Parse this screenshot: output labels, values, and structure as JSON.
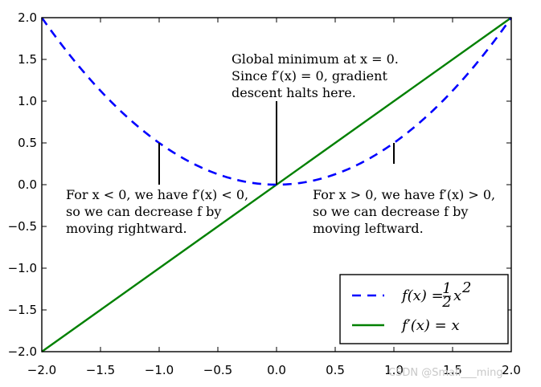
{
  "chart_data": {
    "type": "line",
    "title": "",
    "xlabel": "",
    "ylabel": "",
    "xlim": [
      -2.0,
      2.0
    ],
    "ylim": [
      -2.0,
      2.0
    ],
    "grid": false,
    "x_ticks": [
      "−2.0",
      "−1.5",
      "−1.0",
      "−0.5",
      "0.0",
      "0.5",
      "1.0",
      "1.5",
      "2.0"
    ],
    "y_ticks": [
      "2.0",
      "1.5",
      "1.0",
      "0.5",
      "0.0",
      "−0.5",
      "−1.0",
      "−1.5",
      "−2.0"
    ],
    "series": [
      {
        "name": "f(x) = ½ x²",
        "expression": "0.5*x^2",
        "style": "dashed",
        "color": "#0000ff",
        "x": [
          -2.0,
          -1.5,
          -1.0,
          -0.5,
          0.0,
          0.5,
          1.0,
          1.5,
          2.0
        ],
        "y": [
          2.0,
          1.125,
          0.5,
          0.125,
          0.0,
          0.125,
          0.5,
          1.125,
          2.0
        ]
      },
      {
        "name": "f′(x) = x",
        "expression": "x",
        "style": "solid",
        "color": "#008000",
        "x": [
          -2.0,
          2.0
        ],
        "y": [
          -2.0,
          2.0
        ]
      }
    ],
    "legend": {
      "placement": "lower-right",
      "entries": [
        {
          "label_main": "f(x) = ",
          "label_frac_num": "1",
          "label_frac_den": "2",
          "label_tail": "x",
          "label_sup": "2"
        },
        {
          "label_main": "f′(x) = x"
        }
      ]
    },
    "annotations": [
      {
        "point": [
          -1.0,
          0.5
        ],
        "line_to_y": 0.0,
        "lines": [
          "For x < 0, we have f′(x) < 0,",
          "so we can decrease f by",
          "moving rightward."
        ]
      },
      {
        "point": [
          0.0,
          0.0
        ],
        "line_to_y": 1.0,
        "lines": [
          "Global minimum at x = 0.",
          "Since f′(x) = 0, gradient",
          "descent halts here."
        ]
      },
      {
        "point": [
          1.0,
          0.5
        ],
        "line_to_y": 0.25,
        "lines": [
          "For x > 0, we have f′(x) > 0,",
          "so we can decrease f by",
          "moving leftward."
        ]
      }
    ]
  },
  "watermark": "CSDN @Small___ming",
  "colors": {
    "curve": "#0000ff",
    "line": "#008000",
    "axis": "#000000"
  }
}
